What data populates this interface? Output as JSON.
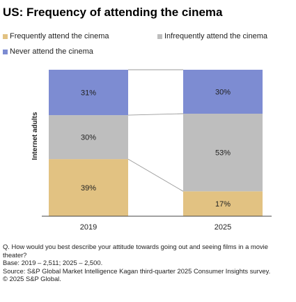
{
  "title": "US: Frequency of attending the cinema",
  "legend": [
    {
      "label": "Frequently attend the cinema",
      "color": "#E2C282"
    },
    {
      "label": "Infrequently attend the cinema",
      "color": "#BEBEBE"
    },
    {
      "label": "Never attend the cinema",
      "color": "#7D8CD2"
    }
  ],
  "chart_data": {
    "type": "bar",
    "stacked": true,
    "categories": [
      "2019",
      "2025"
    ],
    "ylabel": "Internet adults",
    "xlabel": "",
    "ylim": [
      0,
      100
    ],
    "series": [
      {
        "name": "Frequently attend the cinema",
        "values": [
          39,
          17
        ],
        "color": "#E2C282",
        "labels": [
          "39%",
          "17%"
        ]
      },
      {
        "name": "Infrequently attend the cinema",
        "values": [
          30,
          53
        ],
        "color": "#BEBEBE",
        "labels": [
          "30%",
          "53%"
        ]
      },
      {
        "name": "Never attend the cinema",
        "values": [
          31,
          30
        ],
        "color": "#7D8CD2",
        "labels": [
          "31%",
          "30%"
        ]
      }
    ],
    "connector_lines": true,
    "grid": false,
    "legend_position": "top-left"
  },
  "footnotes": [
    "Q. How would you best describe your attitude towards going out and seeing films in a movie theater?",
    "Base: 2019 – 2,511; 2025 – 2,500.",
    "Source: S&P Global Market Intelligence Kagan third-quarter 2025 Consumer Insights survey.",
    "© 2025 S&P Global."
  ]
}
